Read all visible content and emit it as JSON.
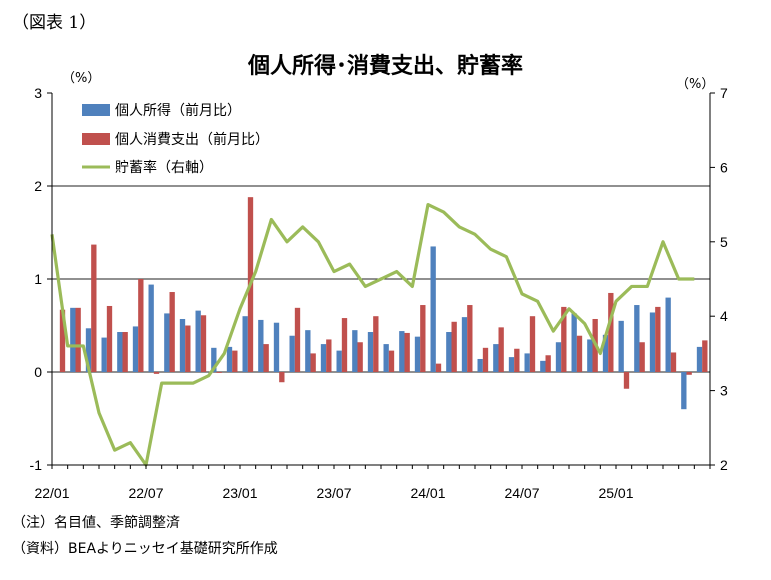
{
  "figure_label": "（図表 1）",
  "notes": [
    "（注）名目値、季節調整済",
    "（資料）BEAよりニッセイ基礎研究所作成"
  ],
  "chart_data": {
    "type": "bar",
    "title": "個人所得･消費支出、貯蓄率",
    "left_unit": "（%）",
    "right_unit": "（%）",
    "ylim": [
      -1,
      3
    ],
    "y2lim": [
      2,
      7
    ],
    "yticks": [
      "3",
      "2",
      "1",
      "0",
      "-1"
    ],
    "y2ticks": [
      "7",
      "6",
      "5",
      "4",
      "3",
      "2"
    ],
    "x_tick_labels": [
      "22/01",
      "22/07",
      "23/01",
      "23/07",
      "24/01",
      "24/07",
      "25/01"
    ],
    "x_tick_index": [
      0,
      6,
      12,
      18,
      24,
      30,
      36
    ],
    "categories": [
      "22/01",
      "22/02",
      "22/03",
      "22/04",
      "22/05",
      "22/06",
      "22/07",
      "22/08",
      "22/09",
      "22/10",
      "22/11",
      "22/12",
      "23/01",
      "23/02",
      "23/03",
      "23/04",
      "23/05",
      "23/06",
      "23/07",
      "23/08",
      "23/09",
      "23/10",
      "23/11",
      "23/12",
      "24/01",
      "24/02",
      "24/03",
      "24/04",
      "24/05",
      "24/06",
      "24/07",
      "24/08",
      "24/09",
      "24/10",
      "24/11",
      "24/12",
      "25/01",
      "25/02",
      "25/03",
      "25/04",
      "25/05",
      "25/06"
    ],
    "legend_position": "top-left",
    "series": [
      {
        "name": "個人所得（前月比）",
        "type": "bar",
        "axis": "left",
        "color": "#4F81BD",
        "values": [
          0.0,
          0.69,
          0.47,
          0.37,
          0.43,
          0.49,
          0.94,
          0.63,
          0.57,
          0.66,
          0.26,
          0.27,
          0.6,
          0.56,
          0.53,
          0.39,
          0.45,
          0.3,
          0.23,
          0.45,
          0.43,
          0.3,
          0.44,
          0.38,
          1.35,
          0.43,
          0.59,
          0.14,
          0.3,
          0.16,
          0.2,
          0.12,
          0.32,
          0.63,
          0.35,
          0.4,
          0.55,
          0.72,
          0.64,
          0.8,
          -0.4,
          0.27
        ]
      },
      {
        "name": "個人消費支出（前月比）",
        "type": "bar",
        "axis": "left",
        "color": "#C0504D",
        "values": [
          0.67,
          0.69,
          1.37,
          0.71,
          0.43,
          1.0,
          -0.02,
          0.86,
          0.5,
          0.61,
          -0.01,
          0.23,
          1.88,
          0.3,
          -0.11,
          0.69,
          0.2,
          0.35,
          0.58,
          0.32,
          0.6,
          0.23,
          0.42,
          0.72,
          0.09,
          0.54,
          0.72,
          0.26,
          0.48,
          0.25,
          0.6,
          0.18,
          0.7,
          0.39,
          0.57,
          0.85,
          -0.18,
          0.32,
          0.7,
          0.21,
          -0.03,
          0.34
        ]
      },
      {
        "name": "貯蓄率（右軸）",
        "type": "line",
        "axis": "right",
        "color": "#9BBB59",
        "values": [
          5.1,
          3.6,
          3.6,
          2.7,
          2.2,
          2.3,
          2.0,
          3.1,
          3.1,
          3.1,
          3.2,
          3.5,
          4.1,
          4.6,
          5.3,
          5.0,
          5.2,
          5.0,
          4.6,
          4.7,
          4.4,
          4.5,
          4.6,
          4.4,
          5.5,
          5.4,
          5.2,
          5.1,
          4.9,
          4.8,
          4.3,
          4.2,
          3.8,
          4.1,
          3.9,
          3.5,
          4.2,
          4.4,
          4.4,
          5.0,
          4.5,
          4.5
        ]
      }
    ]
  }
}
